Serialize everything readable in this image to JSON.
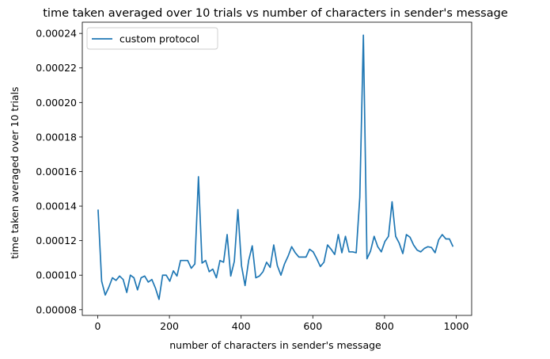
{
  "chart_data": {
    "type": "line",
    "title": "time taken averaged over 10 trials vs number of characters in sender's message",
    "xlabel": "number of characters in sender's message",
    "ylabel": "time taken averaged over 10 trials",
    "xlim": [
      -43,
      1043
    ],
    "ylim": [
      7.67e-05,
      0.0002465
    ],
    "xticks": [
      0,
      200,
      400,
      600,
      800,
      1000
    ],
    "yticks": [
      8e-05,
      0.0001,
      0.00012,
      0.00014,
      0.00016,
      0.00018,
      0.0002,
      0.00022,
      0.00024
    ],
    "xtick_labels": [
      "0",
      "200",
      "400",
      "600",
      "800",
      "1000"
    ],
    "ytick_labels": [
      "0.00008",
      "0.00010",
      "0.00012",
      "0.00014",
      "0.00016",
      "0.00018",
      "0.00020",
      "0.00022",
      "0.00024"
    ],
    "grid": false,
    "legend_position": "top-left",
    "series": [
      {
        "name": "custom protocol",
        "color": "#1f77b4",
        "x": [
          1,
          11,
          21,
          31,
          41,
          51,
          61,
          71,
          81,
          91,
          101,
          111,
          121,
          131,
          141,
          151,
          161,
          171,
          181,
          191,
          201,
          211,
          221,
          231,
          241,
          251,
          261,
          271,
          281,
          291,
          301,
          311,
          321,
          331,
          341,
          351,
          361,
          371,
          381,
          391,
          401,
          411,
          421,
          431,
          441,
          451,
          461,
          471,
          481,
          491,
          501,
          511,
          521,
          531,
          541,
          551,
          561,
          571,
          581,
          591,
          601,
          611,
          621,
          631,
          641,
          651,
          661,
          671,
          681,
          691,
          701,
          711,
          721,
          731,
          741,
          751,
          761,
          771,
          781,
          791,
          801,
          811,
          821,
          831,
          841,
          851,
          861,
          871,
          881,
          891,
          901,
          911,
          921,
          931,
          941,
          951,
          961,
          971,
          981,
          991
        ],
        "y": [
          0.000138,
          9.65e-05,
          8.85e-05,
          9.3e-05,
          9.85e-05,
          9.7e-05,
          9.95e-05,
          9.75e-05,
          9e-05,
          0.0001,
          9.85e-05,
          9.15e-05,
          9.85e-05,
          9.95e-05,
          9.6e-05,
          9.75e-05,
          9.25e-05,
          8.6e-05,
          0.0001,
          0.0001,
          9.65e-05,
          0.0001025,
          9.95e-05,
          0.0001085,
          0.0001085,
          0.0001085,
          0.000104,
          0.0001065,
          0.000157,
          0.000107,
          0.0001085,
          0.000102,
          0.0001035,
          9.85e-05,
          0.0001085,
          0.0001075,
          0.0001235,
          9.95e-05,
          0.000108,
          0.000138,
          0.0001055,
          9.4e-05,
          0.0001085,
          0.000117,
          9.85e-05,
          9.95e-05,
          0.000102,
          0.0001075,
          0.0001045,
          0.0001175,
          0.0001055,
          0.0001,
          0.0001065,
          0.000111,
          0.0001165,
          0.000113,
          0.0001105,
          0.0001105,
          0.0001105,
          0.000115,
          0.0001135,
          0.0001095,
          0.000105,
          0.0001075,
          0.0001175,
          0.000115,
          0.000112,
          0.0001235,
          0.000113,
          0.0001225,
          0.0001135,
          0.0001135,
          0.000113,
          0.000145,
          0.000239,
          0.0001095,
          0.000114,
          0.0001225,
          0.0001165,
          0.0001135,
          0.0001195,
          0.0001225,
          0.0001425,
          0.0001225,
          0.0001185,
          0.0001125,
          0.0001235,
          0.000122,
          0.0001175,
          0.0001145,
          0.0001135,
          0.0001155,
          0.0001165,
          0.000116,
          0.000113,
          0.0001205,
          0.0001235,
          0.000121,
          0.000121,
          0.0001165
        ]
      }
    ]
  }
}
